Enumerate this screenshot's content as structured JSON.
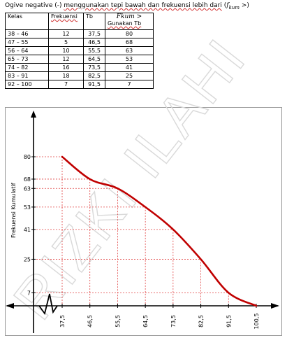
{
  "heading": {
    "prefix": "Ogive negative (-) ",
    "squiggle": "menggunakan tepi bawah dan frekuensi lebih dari",
    "suffix_open": " (",
    "math": "f",
    "math_sub": "kum",
    "suffix_close": " >)"
  },
  "table": {
    "headers": {
      "kelas": "Kelas",
      "frekuensi": "Frekuensi",
      "tb": "Tb",
      "fkum_math": "Fkum >",
      "fkum_text": "Gunakan Tb"
    },
    "rows": [
      {
        "kelas": "38 – 46",
        "frekuensi": "12",
        "tb": "37,5",
        "fkum": "80"
      },
      {
        "kelas": "47 – 55",
        "frekuensi": "5",
        "tb": "46,5",
        "fkum": "68"
      },
      {
        "kelas": "56 – 64",
        "frekuensi": "10",
        "tb": "55,5",
        "fkum": "63"
      },
      {
        "kelas": "65 – 73",
        "frekuensi": "12",
        "tb": "64,5",
        "fkum": "53"
      },
      {
        "kelas": "74 – 82",
        "frekuensi": "16",
        "tb": "73,5",
        "fkum": "41"
      },
      {
        "kelas": "83 – 91",
        "frekuensi": "18",
        "tb": "82,5",
        "fkum": "25"
      },
      {
        "kelas": "92 – 100",
        "frekuensi": "7",
        "tb": "91,5",
        "fkum": "7"
      }
    ]
  },
  "watermark": "RIZKI ILAHI",
  "chart_data": {
    "type": "line",
    "ylabel": "Frekuensi Kumulatif",
    "xlabel": "",
    "x": [
      37.5,
      46.5,
      55.5,
      64.5,
      73.5,
      82.5,
      91.5,
      100.5
    ],
    "x_tick_labels": [
      "37,5",
      "46,5",
      "55,5",
      "64,5",
      "73,5",
      "82,5",
      "91,5",
      "100,5"
    ],
    "y": [
      80,
      68,
      63,
      53,
      41,
      25,
      7,
      0
    ],
    "y_tick_labels": [
      "7",
      "25",
      "41",
      "53",
      "63",
      "68",
      "80"
    ],
    "y_ticks": [
      7,
      25,
      41,
      53,
      63,
      68,
      80
    ],
    "line_color": "#c00000",
    "guide_color": "#e04040",
    "grid": false,
    "axis_break": true
  }
}
